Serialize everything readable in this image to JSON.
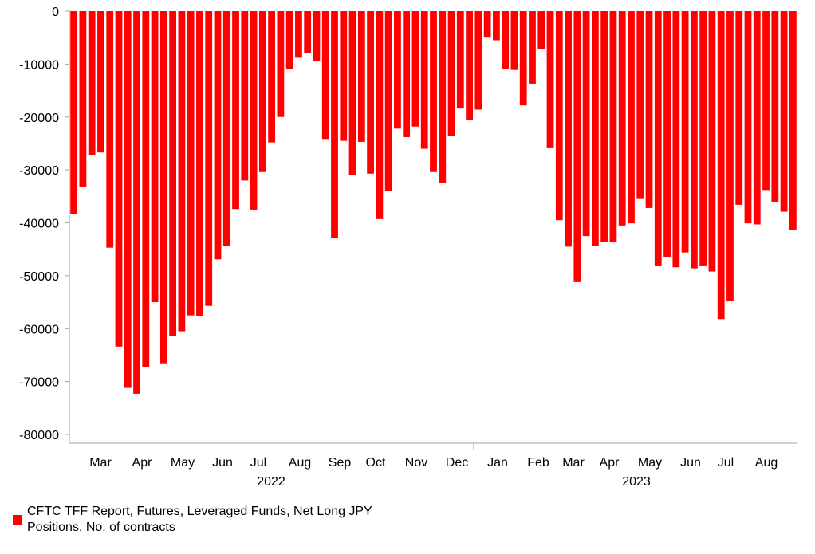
{
  "chart_data": {
    "type": "bar",
    "title": "",
    "xlabel": "",
    "ylabel": "",
    "ylim": [
      -80000,
      0
    ],
    "yticks": [
      0,
      -10000,
      -20000,
      -30000,
      -40000,
      -50000,
      -60000,
      -70000,
      -80000
    ],
    "ytick_labels": [
      "0",
      "-10000",
      "-20000",
      "-30000",
      "-40000",
      "-50000",
      "-60000",
      "-70000",
      "-80000"
    ],
    "month_labels": [
      "Mar",
      "Apr",
      "May",
      "Jun",
      "Jul",
      "Aug",
      "Sep",
      "Oct",
      "Nov",
      "Dec",
      "Jan",
      "Feb",
      "Mar",
      "Apr",
      "May",
      "Jun",
      "Jul",
      "Aug"
    ],
    "year_labels": [
      "2022",
      "2023"
    ],
    "legend_placement": "bottom-left",
    "color": "#ff0000",
    "series": [
      {
        "name": "CFTC TFF Report, Futures, Leveraged Funds, Net Long JPY Positions, No. of contracts",
        "values": [
          -38300,
          -33200,
          -27200,
          -26700,
          -44700,
          -63400,
          -71200,
          -72300,
          -67300,
          -55000,
          -66700,
          -61400,
          -60500,
          -57500,
          -57700,
          -55700,
          -46900,
          -44400,
          -37400,
          -32000,
          -37500,
          -30400,
          -24800,
          -20000,
          -11000,
          -8800,
          -7900,
          -9500,
          -24300,
          -42800,
          -24500,
          -31000,
          -24700,
          -30700,
          -39300,
          -33900,
          -22200,
          -23800,
          -21800,
          -26000,
          -30400,
          -32500,
          -23600,
          -18400,
          -20600,
          -18600,
          -5000,
          -5500,
          -10900,
          -11100,
          -17800,
          -13700,
          -7100,
          -25900,
          -39500,
          -44500,
          -51200,
          -42500,
          -44400,
          -43600,
          -43700,
          -40500,
          -40100,
          -35500,
          -37200,
          -48200,
          -46400,
          -48400,
          -45600,
          -48600,
          -48200,
          -49200,
          -58200,
          -54800,
          -36600,
          -40100,
          -40300,
          -33800,
          -36000,
          -37900,
          -41300
        ]
      }
    ]
  }
}
